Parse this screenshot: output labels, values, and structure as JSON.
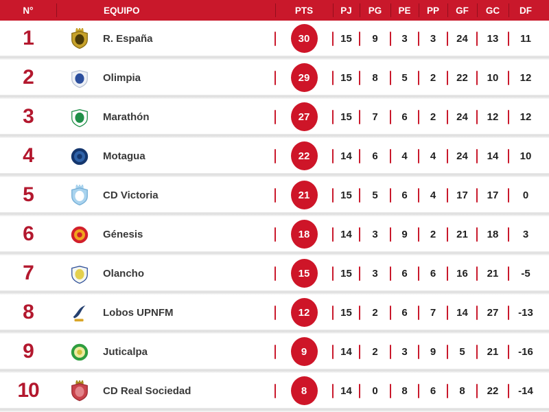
{
  "header": {
    "rank": "N°",
    "team": "EQUIPO",
    "stats": [
      "PTS",
      "PJ",
      "PG",
      "PE",
      "PP",
      "GF",
      "GC",
      "DF"
    ]
  },
  "colors": {
    "header_bg": "#C9182B",
    "rank_red": "#B3182E",
    "points_badge": "#CE1528",
    "separator_red": "#C9182B",
    "stat_text": "#1f1f1f",
    "row_divider": "#dedede"
  },
  "rows": [
    {
      "rank": "1",
      "team": "R. España",
      "pts": "30",
      "pj": "15",
      "pg": "9",
      "pe": "3",
      "pp": "3",
      "gf": "24",
      "gc": "13",
      "df": "11",
      "logo": {
        "name": "real-espana-crest",
        "kind": "shield",
        "crown": true,
        "c1": "#c7a22a",
        "c2": "#4a3a08",
        "c3": "#c7a22a",
        "stroke": "#8a6d14"
      }
    },
    {
      "rank": "2",
      "team": "Olimpia",
      "pts": "29",
      "pj": "15",
      "pg": "8",
      "pe": "5",
      "pp": "2",
      "gf": "22",
      "gc": "10",
      "df": "12",
      "logo": {
        "name": "olimpia-crest",
        "kind": "shield",
        "crown": false,
        "c1": "#eef1f6",
        "c2": "#2c4f9e",
        "c3": "#c0392b",
        "stroke": "#b8c2d4"
      }
    },
    {
      "rank": "3",
      "team": "Marathón",
      "pts": "27",
      "pj": "15",
      "pg": "7",
      "pe": "6",
      "pp": "2",
      "gf": "24",
      "gc": "12",
      "df": "12",
      "logo": {
        "name": "marathon-crest",
        "kind": "shield",
        "crown": false,
        "c1": "#ffffff",
        "c2": "#1f8f48",
        "c3": "#c0392b",
        "stroke": "#1f8f48"
      }
    },
    {
      "rank": "4",
      "team": "Motagua",
      "pts": "22",
      "pj": "14",
      "pg": "6",
      "pe": "4",
      "pp": "4",
      "gf": "24",
      "gc": "14",
      "df": "10",
      "logo": {
        "name": "motagua-crest",
        "kind": "circle",
        "c1": "#14366d",
        "c2": "#2f62a8",
        "c3": "#14366d"
      }
    },
    {
      "rank": "5",
      "team": "CD Victoria",
      "pts": "21",
      "pj": "15",
      "pg": "5",
      "pe": "6",
      "pp": "4",
      "gf": "17",
      "gc": "17",
      "df": "0",
      "logo": {
        "name": "cd-victoria-crest",
        "kind": "shield",
        "crown": true,
        "c1": "#a9d3ee",
        "c2": "#ffffff",
        "c3": "#a9d3ee",
        "stroke": "#74aed6"
      }
    },
    {
      "rank": "6",
      "team": "Génesis",
      "pts": "18",
      "pj": "14",
      "pg": "3",
      "pe": "9",
      "pp": "2",
      "gf": "21",
      "gc": "18",
      "df": "3",
      "logo": {
        "name": "genesis-crest",
        "kind": "circle",
        "c1": "#d2202b",
        "c2": "#f0a51e",
        "c3": "#d2202b"
      }
    },
    {
      "rank": "7",
      "team": "Olancho",
      "pts": "15",
      "pj": "15",
      "pg": "3",
      "pe": "6",
      "pp": "6",
      "gf": "16",
      "gc": "21",
      "df": "-5",
      "logo": {
        "name": "olancho-crest",
        "kind": "shield",
        "crown": false,
        "c1": "#f5f7f0",
        "c2": "#e4d04e",
        "c3": "#31519b",
        "stroke": "#31519b"
      }
    },
    {
      "rank": "8",
      "team": "Lobos UPNFM",
      "pts": "12",
      "pj": "15",
      "pg": "2",
      "pe": "6",
      "pp": "7",
      "gf": "14",
      "gc": "27",
      "df": "-13",
      "logo": {
        "name": "lobos-upnfm-crest",
        "kind": "swoosh",
        "c1": "#25406f",
        "c2": "#d9a528"
      }
    },
    {
      "rank": "9",
      "team": "Juticalpa",
      "pts": "9",
      "pj": "14",
      "pg": "2",
      "pe": "3",
      "pp": "9",
      "gf": "5",
      "gc": "21",
      "df": "-16",
      "logo": {
        "name": "juticalpa-crest",
        "kind": "circle",
        "c1": "#2f9e3f",
        "c2": "#eeeaa0",
        "c3": "#cfc23a"
      }
    },
    {
      "rank": "10",
      "team": "CD Real Sociedad",
      "pts": "8",
      "pj": "14",
      "pg": "0",
      "pe": "8",
      "pp": "6",
      "gf": "8",
      "gc": "22",
      "df": "-14",
      "logo": {
        "name": "real-sociedad-crest",
        "kind": "shield",
        "crown": true,
        "c1": "#c8434b",
        "c2": "#e2848a",
        "c3": "#a88a20",
        "stroke": "#9e2b33"
      }
    }
  ]
}
